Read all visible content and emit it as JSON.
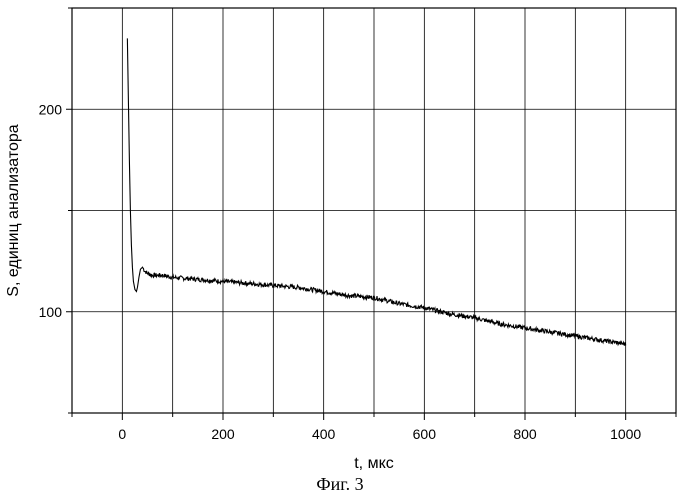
{
  "chart_data": {
    "type": "line",
    "caption": "Фиг. 3",
    "xlabel": "t, мкс",
    "ylabel": "S, единиц анализатора",
    "xlim": [
      -100,
      1100
    ],
    "ylim": [
      50,
      250
    ],
    "x_ticks_major": [
      0,
      200,
      400,
      600,
      800,
      1000
    ],
    "x_ticks_minor": [
      -100,
      100,
      300,
      500,
      700,
      900,
      1100
    ],
    "y_ticks_major": [
      100,
      200
    ],
    "y_ticks_minor": [
      50,
      150,
      250
    ],
    "grid": true,
    "series": [
      {
        "color": "#000000",
        "x": [
          10,
          12,
          14,
          16,
          18,
          20,
          22,
          25,
          28,
          30,
          33,
          36,
          40,
          45,
          50,
          60,
          80,
          100,
          150,
          200,
          250,
          300,
          350,
          400,
          450,
          500,
          550,
          600,
          650,
          700,
          750,
          800,
          850,
          900,
          950,
          1000
        ],
        "y": [
          235,
          205,
          175,
          150,
          133,
          122,
          115,
          111,
          110,
          112,
          117,
          121,
          122,
          120,
          119,
          118,
          118,
          117,
          116,
          115,
          114,
          113,
          112,
          110,
          108,
          107,
          104,
          102,
          99,
          97,
          94,
          92,
          90,
          88,
          86,
          84
        ]
      }
    ]
  }
}
